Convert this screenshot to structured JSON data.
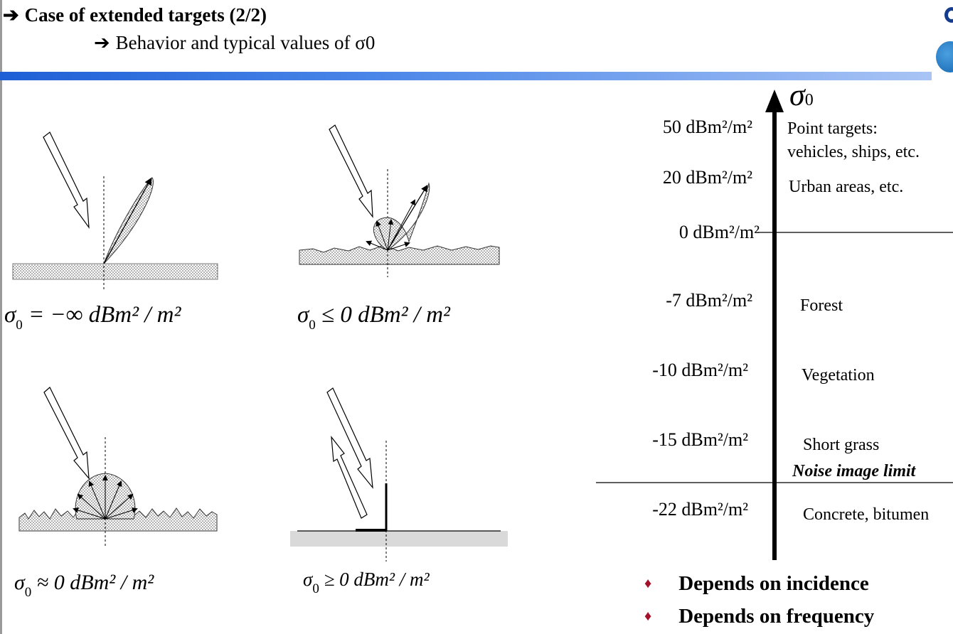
{
  "header": {
    "title": "Case of extended targets (2/2)",
    "subtitle": "Behavior and typical values of σ0"
  },
  "diagrams": {
    "d1_formula": "= −∞ dBm² / m²",
    "d2_formula": "≤ 0 dBm² / m²",
    "d3_formula": "≈ 0 dBm² / m²",
    "d4_formula": "≥ 0 dBm² / m²",
    "sigma": "σ",
    "sub": "0"
  },
  "scale": {
    "axis_label": "σ",
    "axis_sub": "0",
    "levels": [
      {
        "value": "50 dBm²/m²",
        "category": "Point targets:\nvehicles, ships, etc."
      },
      {
        "value": "20 dBm²/m²",
        "category": "Urban areas, etc."
      },
      {
        "value": "0 dBm²/m²",
        "category": ""
      },
      {
        "value": "-7 dBm²/m²",
        "category": "Forest"
      },
      {
        "value": "-10 dBm²/m²",
        "category": "Vegetation"
      },
      {
        "value": "-15 dBm²/m²",
        "category": "Short grass"
      },
      {
        "value": "-22 dBm²/m²",
        "category": "Concrete, bitumen"
      }
    ],
    "noise_limit": "Noise image limit"
  },
  "bullets": [
    "Depends on incidence",
    "Depends on frequency"
  ],
  "colors": {
    "accent_bar": "#1f5fd6",
    "bullet": "#a3122a"
  }
}
